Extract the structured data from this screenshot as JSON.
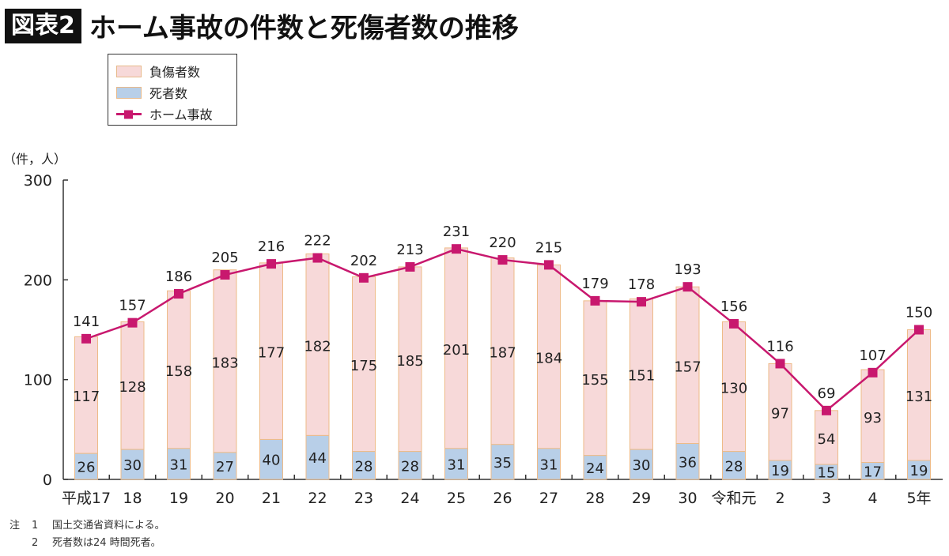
{
  "header": {
    "badge": "図表2",
    "title": "ホーム事故の件数と死傷者数の推移"
  },
  "legend": {
    "items": [
      {
        "label": "負傷者数",
        "color": "#f7d9d9"
      },
      {
        "label": "死者数",
        "color": "#b8cfe8"
      },
      {
        "label": "ホーム事故",
        "color": "#c8186e"
      }
    ]
  },
  "notes": {
    "prefix": "注",
    "items": [
      {
        "num": "1",
        "text": "国土交通省資料による。"
      },
      {
        "num": "2",
        "text": "死者数は24 時間死者。"
      }
    ]
  },
  "chart_data": {
    "type": "bar",
    "stacked": true,
    "title": "ホーム事故の件数と死傷者数の推移",
    "ylabel": "（件，人）",
    "ylim": [
      0,
      300
    ],
    "yticks": [
      0,
      100,
      200,
      300
    ],
    "grid": false,
    "legend_position": "top-left",
    "categories": [
      "平成17",
      "18",
      "19",
      "20",
      "21",
      "22",
      "23",
      "24",
      "25",
      "26",
      "27",
      "28",
      "29",
      "30",
      "令和元",
      "2",
      "3",
      "4",
      "5年"
    ],
    "series": [
      {
        "name": "死者数",
        "type": "bar",
        "color": "#b8cfe8",
        "values": [
          26,
          30,
          31,
          27,
          40,
          44,
          28,
          28,
          31,
          35,
          31,
          24,
          30,
          36,
          28,
          19,
          15,
          17,
          19
        ]
      },
      {
        "name": "負傷者数",
        "type": "bar",
        "color": "#f7d9d9",
        "values": [
          117,
          128,
          158,
          183,
          177,
          182,
          175,
          185,
          201,
          187,
          184,
          155,
          151,
          157,
          130,
          97,
          54,
          93,
          131
        ]
      },
      {
        "name": "ホーム事故",
        "type": "line",
        "color": "#c8186e",
        "values": [
          141,
          157,
          186,
          205,
          216,
          222,
          202,
          213,
          231,
          220,
          215,
          179,
          178,
          193,
          156,
          116,
          69,
          107,
          150
        ]
      }
    ]
  }
}
